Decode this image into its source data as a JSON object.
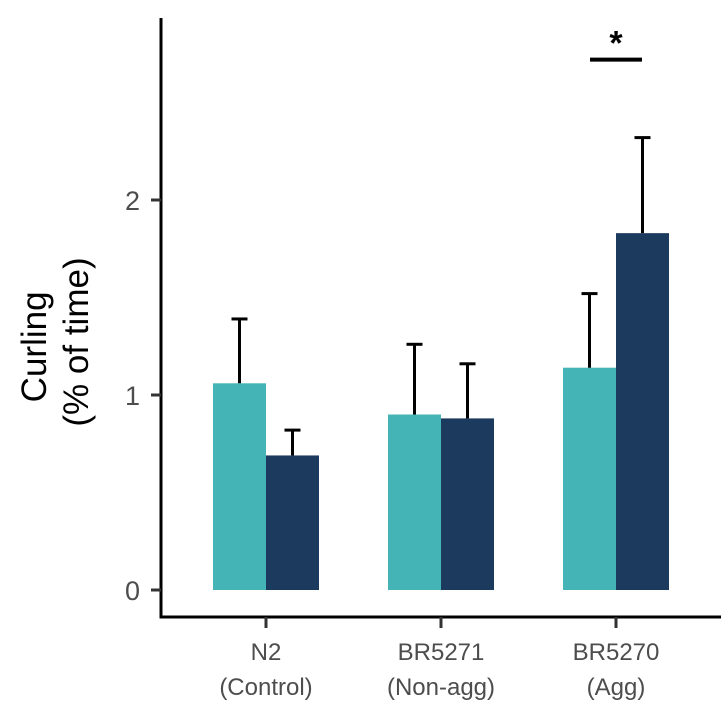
{
  "chart_data": {
    "type": "bar",
    "ylabel_lines": [
      "Curling",
      "(% of time)"
    ],
    "ylim": [
      0,
      2.92
    ],
    "yticks": [
      0,
      1,
      2
    ],
    "categories": [
      {
        "line1": "N2",
        "line2": "(Control)"
      },
      {
        "line1": "BR5271",
        "line2": "(Non-agg)"
      },
      {
        "line1": "BR5270",
        "line2": "(Agg)"
      }
    ],
    "series": [
      {
        "color": "#45b4b6",
        "values": [
          1.06,
          0.9,
          1.14
        ],
        "errors": [
          0.33,
          0.36,
          0.38
        ]
      },
      {
        "color": "#1c3a5e",
        "values": [
          0.69,
          0.88,
          1.83
        ],
        "errors": [
          0.13,
          0.28,
          0.49
        ]
      }
    ],
    "annotation": {
      "text": "*",
      "category_index": 2,
      "y": 2.72
    }
  }
}
